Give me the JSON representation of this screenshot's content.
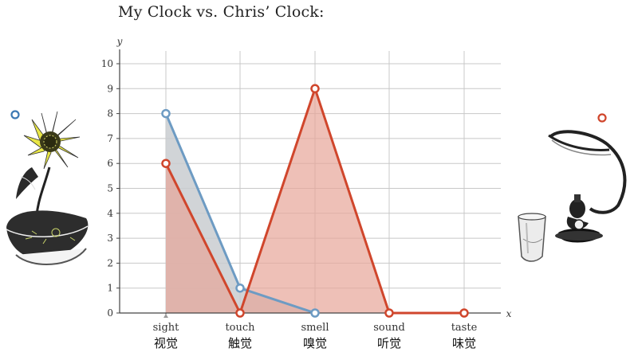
{
  "title": "My Clock vs. Chris’ Clock:",
  "chart_data": {
    "type": "area",
    "title": "My Clock vs. Chris’ Clock:",
    "xlabel": "x",
    "ylabel": "y",
    "categories": [
      "sight",
      "touch",
      "smell",
      "sound",
      "taste"
    ],
    "categories_cn": [
      "视觉",
      "触觉",
      "嗅觉",
      "听觉",
      "味觉"
    ],
    "ylim": [
      0,
      10
    ],
    "yticks": [
      0,
      1,
      2,
      3,
      4,
      5,
      6,
      7,
      8,
      9,
      10
    ],
    "grid": true,
    "series": [
      {
        "values": [
          8,
          1,
          0,
          null,
          null
        ],
        "color": "#6d9bc3",
        "fill": "#c9ccd0"
      },
      {
        "values": [
          6,
          0,
          9,
          0,
          0
        ],
        "color": "#d0462c",
        "fill": "#e7a598"
      }
    ],
    "legend_icons": [
      "sunflower-icon",
      "drink-and-hookah-icon"
    ]
  }
}
